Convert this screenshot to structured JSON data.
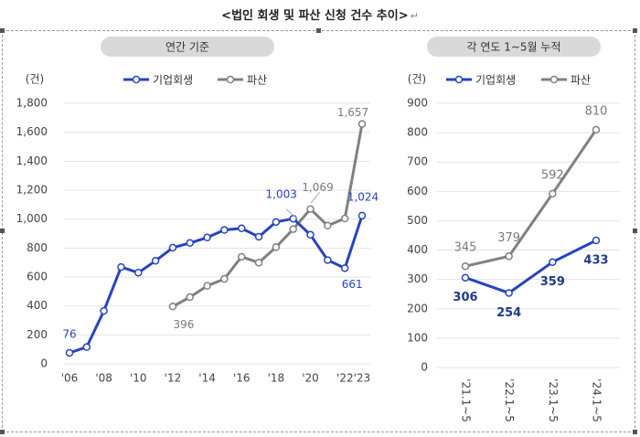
{
  "page": {
    "title": "<법인 회생 및 파산 신청 건수 추이>",
    "return_mark": "↵"
  },
  "colors": {
    "series_1": "#2643c4",
    "series_2": "#808080",
    "pill": "#d9d9d9",
    "grid": "#e3e3e3"
  },
  "chart_data": [
    {
      "type": "line",
      "subtitle": "연간 기준",
      "ylabel": "(건)",
      "ylim": [
        0,
        1800
      ],
      "yticks": [
        0,
        200,
        400,
        600,
        800,
        1000,
        1200,
        1400,
        1600,
        1800
      ],
      "ytick_labels": [
        "0",
        "200",
        "400",
        "600",
        "800",
        "1,000",
        "1,200",
        "1,400",
        "1,600",
        "1,800"
      ],
      "x": [
        2006,
        2007,
        2008,
        2009,
        2010,
        2011,
        2012,
        2013,
        2014,
        2015,
        2016,
        2017,
        2018,
        2019,
        2020,
        2021,
        2022,
        2023
      ],
      "xtick_labels": [
        "'06",
        "'08",
        "'10",
        "'12",
        "'14",
        "'16",
        "'18",
        "'20",
        "'22'23"
      ],
      "legend_position": "top",
      "series": [
        {
          "name": "기업회생",
          "color": "#2643c4",
          "values": [
            76,
            116,
            366,
            669,
            630,
            712,
            803,
            835,
            873,
            925,
            936,
            878,
            980,
            1003,
            892,
            717,
            661,
            1024
          ]
        },
        {
          "name": "파산",
          "color": "#808080",
          "values": [
            null,
            null,
            null,
            null,
            null,
            null,
            396,
            461,
            539,
            587,
            740,
            699,
            806,
            931,
            1069,
            955,
            1004,
            1657
          ]
        }
      ],
      "annotations": [
        {
          "series": 0,
          "x": 2006,
          "text": "76"
        },
        {
          "series": 0,
          "x": 2019,
          "text": "1,003"
        },
        {
          "series": 0,
          "x": 2022,
          "text": "661"
        },
        {
          "series": 0,
          "x": 2023,
          "text": "1,024"
        },
        {
          "series": 1,
          "x": 2012,
          "text": "396"
        },
        {
          "series": 1,
          "x": 2020,
          "text": "1,069"
        },
        {
          "series": 1,
          "x": 2023,
          "text": "1,657"
        }
      ]
    },
    {
      "type": "line",
      "subtitle": "각 연도 1~5월 누적",
      "ylabel": "(건)",
      "ylim": [
        0,
        900
      ],
      "yticks": [
        0,
        100,
        200,
        300,
        400,
        500,
        600,
        700,
        800,
        900
      ],
      "ytick_labels": [
        "0",
        "100",
        "200",
        "300",
        "400",
        "500",
        "600",
        "700",
        "800",
        "900"
      ],
      "categories": [
        "'21.1~5",
        "'22.1~5",
        "'23.1~5",
        "'24.1~5"
      ],
      "legend_position": "top",
      "series": [
        {
          "name": "기업회생",
          "color": "#2643c4",
          "values": [
            306,
            254,
            359,
            433
          ]
        },
        {
          "name": "파산",
          "color": "#808080",
          "values": [
            345,
            379,
            592,
            810
          ]
        }
      ],
      "annotations": [
        {
          "series": 0,
          "i": 0,
          "text": "306"
        },
        {
          "series": 0,
          "i": 1,
          "text": "254"
        },
        {
          "series": 0,
          "i": 2,
          "text": "359"
        },
        {
          "series": 0,
          "i": 3,
          "text": "433"
        },
        {
          "series": 1,
          "i": 0,
          "text": "345"
        },
        {
          "series": 1,
          "i": 1,
          "text": "379"
        },
        {
          "series": 1,
          "i": 2,
          "text": "592"
        },
        {
          "series": 1,
          "i": 3,
          "text": "810"
        }
      ]
    }
  ]
}
